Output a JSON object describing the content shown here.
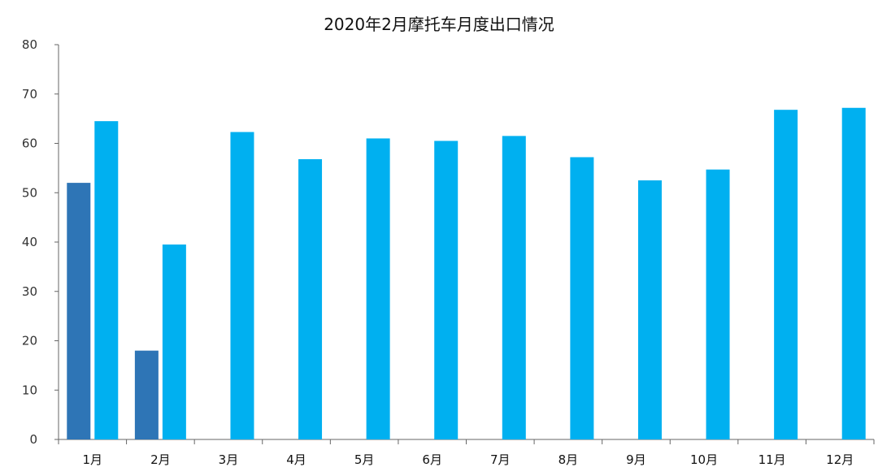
{
  "chart_data": {
    "type": "bar",
    "title": "2020年2月摩托车月度出口情况",
    "xlabel": "",
    "ylabel": "",
    "ylim": [
      0,
      80
    ],
    "yticks": [
      0,
      10,
      20,
      30,
      40,
      50,
      60,
      70,
      80
    ],
    "categories": [
      "1月",
      "2月",
      "3月",
      "4月",
      "5月",
      "6月",
      "7月",
      "8月",
      "9月",
      "10月",
      "11月",
      "12月"
    ],
    "series": [
      {
        "color": "#2e75b6",
        "values": [
          52,
          18,
          null,
          null,
          null,
          null,
          null,
          null,
          null,
          null,
          null,
          null
        ]
      },
      {
        "color": "#00b0f0",
        "values": [
          64.5,
          39.5,
          62.3,
          56.8,
          61.0,
          60.5,
          61.5,
          57.2,
          52.5,
          54.7,
          66.8,
          67.2
        ]
      }
    ],
    "grid": false,
    "legend": "none"
  }
}
